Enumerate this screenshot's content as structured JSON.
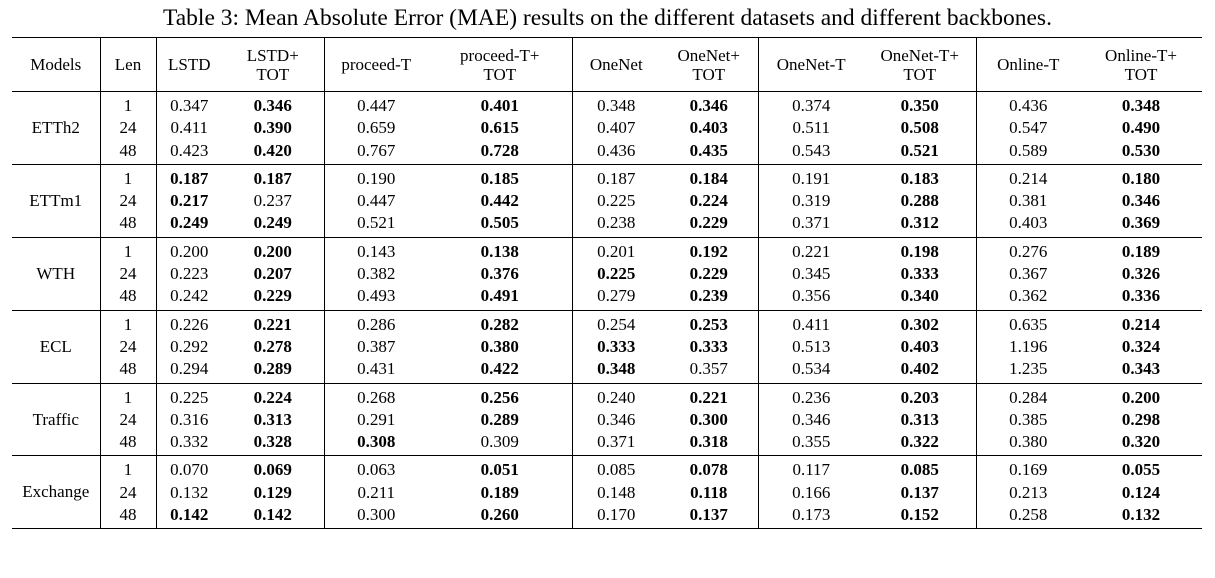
{
  "caption": "Table 3: Mean Absolute Error (MAE) results on the different datasets and different backbones.",
  "columns": [
    {
      "key": "models",
      "lines": [
        "Models"
      ]
    },
    {
      "key": "len",
      "lines": [
        "Len"
      ]
    },
    {
      "key": "lstd",
      "lines": [
        "LSTD"
      ]
    },
    {
      "key": "lstd_tot",
      "lines": [
        "LSTD+",
        "TOT"
      ]
    },
    {
      "key": "proceed_t",
      "lines": [
        "proceed-T"
      ]
    },
    {
      "key": "proceed_t_tot",
      "lines": [
        "proceed-T+",
        "TOT"
      ]
    },
    {
      "key": "onenet",
      "lines": [
        "OneNet"
      ]
    },
    {
      "key": "onenet_tot",
      "lines": [
        "OneNet+",
        "TOT"
      ]
    },
    {
      "key": "onenet_t",
      "lines": [
        "OneNet-T"
      ]
    },
    {
      "key": "onenet_t_tot",
      "lines": [
        "OneNet-T+",
        "TOT"
      ]
    },
    {
      "key": "online_t",
      "lines": [
        "Online-T"
      ]
    },
    {
      "key": "online_t_tot",
      "lines": [
        "Online-T+",
        "TOT"
      ]
    }
  ],
  "groups": [
    {
      "name": "ETTh2",
      "lens": [
        "1",
        "24",
        "48"
      ],
      "data": [
        [
          [
            "0.347",
            false
          ],
          [
            "0.411",
            false
          ],
          [
            "0.423",
            false
          ]
        ],
        [
          [
            "0.346",
            true
          ],
          [
            "0.390",
            true
          ],
          [
            "0.420",
            true
          ]
        ],
        [
          [
            "0.447",
            false
          ],
          [
            "0.659",
            false
          ],
          [
            "0.767",
            false
          ]
        ],
        [
          [
            "0.401",
            true
          ],
          [
            "0.615",
            true
          ],
          [
            "0.728",
            true
          ]
        ],
        [
          [
            "0.348",
            false
          ],
          [
            "0.407",
            false
          ],
          [
            "0.436",
            false
          ]
        ],
        [
          [
            "0.346",
            true
          ],
          [
            "0.403",
            true
          ],
          [
            "0.435",
            true
          ]
        ],
        [
          [
            "0.374",
            false
          ],
          [
            "0.511",
            false
          ],
          [
            "0.543",
            false
          ]
        ],
        [
          [
            "0.350",
            true
          ],
          [
            "0.508",
            true
          ],
          [
            "0.521",
            true
          ]
        ],
        [
          [
            "0.436",
            false
          ],
          [
            "0.547",
            false
          ],
          [
            "0.589",
            false
          ]
        ],
        [
          [
            "0.348",
            true
          ],
          [
            "0.490",
            true
          ],
          [
            "0.530",
            true
          ]
        ]
      ]
    },
    {
      "name": "ETTm1",
      "lens": [
        "1",
        "24",
        "48"
      ],
      "data": [
        [
          [
            "0.187",
            true
          ],
          [
            "0.217",
            true
          ],
          [
            "0.249",
            true
          ]
        ],
        [
          [
            "0.187",
            true
          ],
          [
            "0.237",
            false
          ],
          [
            "0.249",
            true
          ]
        ],
        [
          [
            "0.190",
            false
          ],
          [
            "0.447",
            false
          ],
          [
            "0.521",
            false
          ]
        ],
        [
          [
            "0.185",
            true
          ],
          [
            "0.442",
            true
          ],
          [
            "0.505",
            true
          ]
        ],
        [
          [
            "0.187",
            false
          ],
          [
            "0.225",
            false
          ],
          [
            "0.238",
            false
          ]
        ],
        [
          [
            "0.184",
            true
          ],
          [
            "0.224",
            true
          ],
          [
            "0.229",
            true
          ]
        ],
        [
          [
            "0.191",
            false
          ],
          [
            "0.319",
            false
          ],
          [
            "0.371",
            false
          ]
        ],
        [
          [
            "0.183",
            true
          ],
          [
            "0.288",
            true
          ],
          [
            "0.312",
            true
          ]
        ],
        [
          [
            "0.214",
            false
          ],
          [
            "0.381",
            false
          ],
          [
            "0.403",
            false
          ]
        ],
        [
          [
            "0.180",
            true
          ],
          [
            "0.346",
            true
          ],
          [
            "0.369",
            true
          ]
        ]
      ]
    },
    {
      "name": "WTH",
      "lens": [
        "1",
        "24",
        "48"
      ],
      "data": [
        [
          [
            "0.200",
            false
          ],
          [
            "0.223",
            false
          ],
          [
            "0.242",
            false
          ]
        ],
        [
          [
            "0.200",
            true
          ],
          [
            "0.207",
            true
          ],
          [
            "0.229",
            true
          ]
        ],
        [
          [
            "0.143",
            false
          ],
          [
            "0.382",
            false
          ],
          [
            "0.493",
            false
          ]
        ],
        [
          [
            "0.138",
            true
          ],
          [
            "0.376",
            true
          ],
          [
            "0.491",
            true
          ]
        ],
        [
          [
            "0.201",
            false
          ],
          [
            "0.225",
            true
          ],
          [
            "0.279",
            false
          ]
        ],
        [
          [
            "0.192",
            true
          ],
          [
            "0.229",
            true
          ],
          [
            "0.239",
            true
          ]
        ],
        [
          [
            "0.221",
            false
          ],
          [
            "0.345",
            false
          ],
          [
            "0.356",
            false
          ]
        ],
        [
          [
            "0.198",
            true
          ],
          [
            "0.333",
            true
          ],
          [
            "0.340",
            true
          ]
        ],
        [
          [
            "0.276",
            false
          ],
          [
            "0.367",
            false
          ],
          [
            "0.362",
            false
          ]
        ],
        [
          [
            "0.189",
            true
          ],
          [
            "0.326",
            true
          ],
          [
            "0.336",
            true
          ]
        ]
      ]
    },
    {
      "name": "ECL",
      "lens": [
        "1",
        "24",
        "48"
      ],
      "data": [
        [
          [
            "0.226",
            false
          ],
          [
            "0.292",
            false
          ],
          [
            "0.294",
            false
          ]
        ],
        [
          [
            "0.221",
            true
          ],
          [
            "0.278",
            true
          ],
          [
            "0.289",
            true
          ]
        ],
        [
          [
            "0.286",
            false
          ],
          [
            "0.387",
            false
          ],
          [
            "0.431",
            false
          ]
        ],
        [
          [
            "0.282",
            true
          ],
          [
            "0.380",
            true
          ],
          [
            "0.422",
            true
          ]
        ],
        [
          [
            "0.254",
            false
          ],
          [
            "0.333",
            true
          ],
          [
            "0.348",
            true
          ]
        ],
        [
          [
            "0.253",
            true
          ],
          [
            "0.333",
            true
          ],
          [
            "0.357",
            false
          ]
        ],
        [
          [
            "0.411",
            false
          ],
          [
            "0.513",
            false
          ],
          [
            "0.534",
            false
          ]
        ],
        [
          [
            "0.302",
            true
          ],
          [
            "0.403",
            true
          ],
          [
            "0.402",
            true
          ]
        ],
        [
          [
            "0.635",
            false
          ],
          [
            "1.196",
            false
          ],
          [
            "1.235",
            false
          ]
        ],
        [
          [
            "0.214",
            true
          ],
          [
            "0.324",
            true
          ],
          [
            "0.343",
            true
          ]
        ]
      ]
    },
    {
      "name": "Traffic",
      "lens": [
        "1",
        "24",
        "48"
      ],
      "data": [
        [
          [
            "0.225",
            false
          ],
          [
            "0.316",
            false
          ],
          [
            "0.332",
            false
          ]
        ],
        [
          [
            "0.224",
            true
          ],
          [
            "0.313",
            true
          ],
          [
            "0.328",
            true
          ]
        ],
        [
          [
            "0.268",
            false
          ],
          [
            "0.291",
            false
          ],
          [
            "0.308",
            true
          ]
        ],
        [
          [
            "0.256",
            true
          ],
          [
            "0.289",
            true
          ],
          [
            "0.309",
            false
          ]
        ],
        [
          [
            "0.240",
            false
          ],
          [
            "0.346",
            false
          ],
          [
            "0.371",
            false
          ]
        ],
        [
          [
            "0.221",
            true
          ],
          [
            "0.300",
            true
          ],
          [
            "0.318",
            true
          ]
        ],
        [
          [
            "0.236",
            false
          ],
          [
            "0.346",
            false
          ],
          [
            "0.355",
            false
          ]
        ],
        [
          [
            "0.203",
            true
          ],
          [
            "0.313",
            true
          ],
          [
            "0.322",
            true
          ]
        ],
        [
          [
            "0.284",
            false
          ],
          [
            "0.385",
            false
          ],
          [
            "0.380",
            false
          ]
        ],
        [
          [
            "0.200",
            true
          ],
          [
            "0.298",
            true
          ],
          [
            "0.320",
            true
          ]
        ]
      ]
    },
    {
      "name": "Exchange",
      "lens": [
        "1",
        "24",
        "48"
      ],
      "data": [
        [
          [
            "0.070",
            false
          ],
          [
            "0.132",
            false
          ],
          [
            "0.142",
            true
          ]
        ],
        [
          [
            "0.069",
            true
          ],
          [
            "0.129",
            true
          ],
          [
            "0.142",
            true
          ]
        ],
        [
          [
            "0.063",
            false
          ],
          [
            "0.211",
            false
          ],
          [
            "0.300",
            false
          ]
        ],
        [
          [
            "0.051",
            true
          ],
          [
            "0.189",
            true
          ],
          [
            "0.260",
            true
          ]
        ],
        [
          [
            "0.085",
            false
          ],
          [
            "0.148",
            false
          ],
          [
            "0.170",
            false
          ]
        ],
        [
          [
            "0.078",
            true
          ],
          [
            "0.118",
            true
          ],
          [
            "0.137",
            true
          ]
        ],
        [
          [
            "0.117",
            false
          ],
          [
            "0.166",
            false
          ],
          [
            "0.173",
            false
          ]
        ],
        [
          [
            "0.085",
            true
          ],
          [
            "0.137",
            true
          ],
          [
            "0.152",
            true
          ]
        ],
        [
          [
            "0.169",
            false
          ],
          [
            "0.213",
            false
          ],
          [
            "0.258",
            false
          ]
        ],
        [
          [
            "0.055",
            true
          ],
          [
            "0.124",
            true
          ],
          [
            "0.132",
            true
          ]
        ]
      ]
    }
  ]
}
